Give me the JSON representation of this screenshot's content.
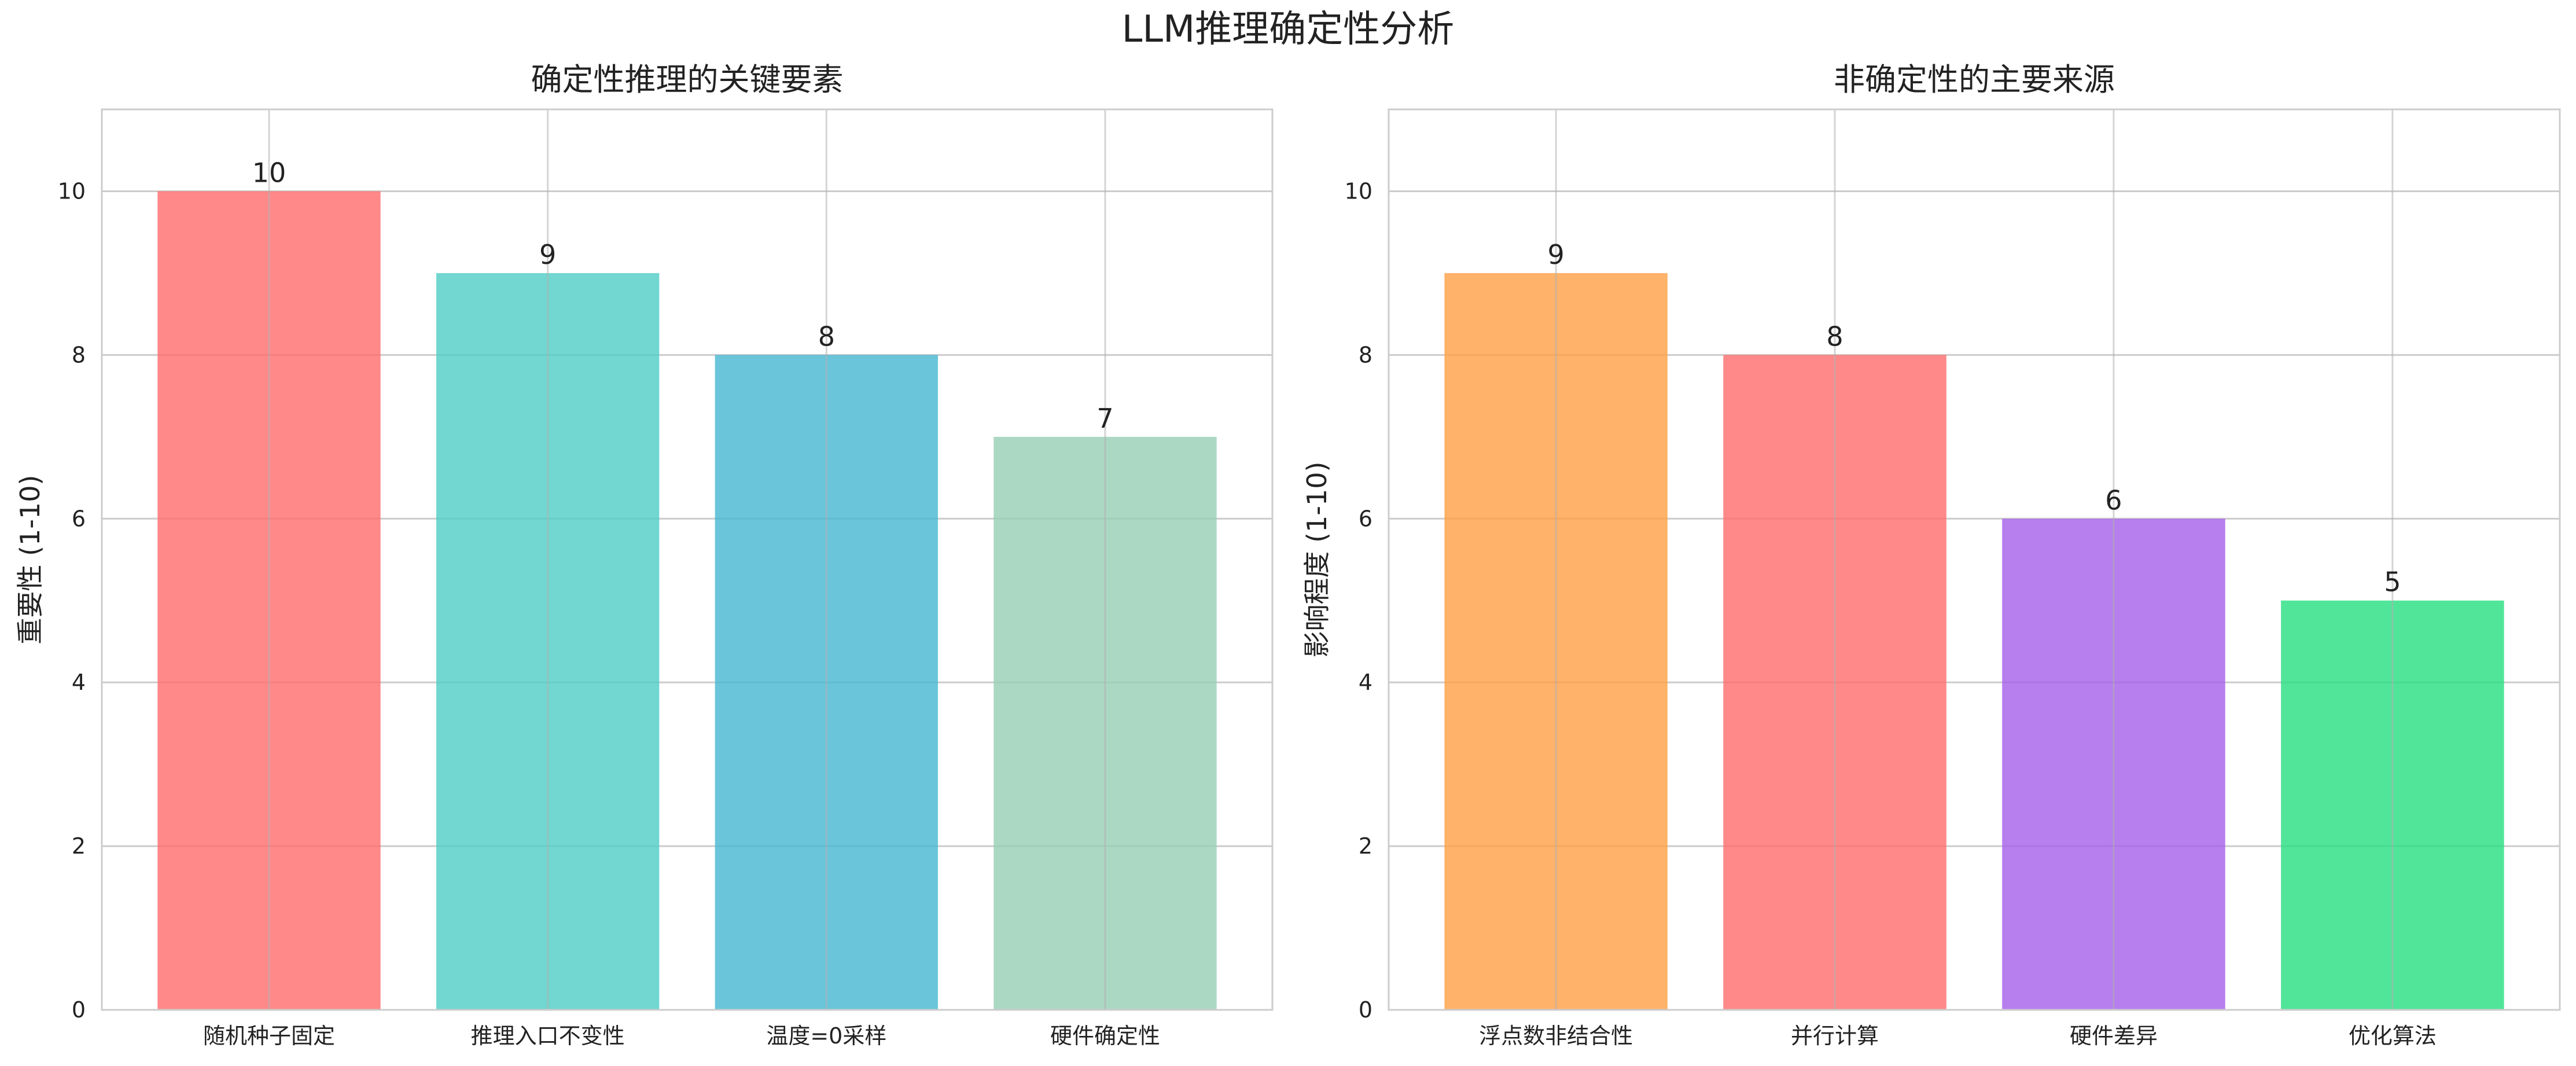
{
  "figure": {
    "suptitle": "LLM推理确定性分析"
  },
  "chart_data": [
    {
      "type": "bar",
      "title": "确定性推理的关键要素",
      "xlabel": "",
      "ylabel": "重要性 (1-10)",
      "categories": [
        "随机种子固定",
        "推理入口不变性",
        "温度=0采样",
        "硬件确定性"
      ],
      "values": [
        10,
        9,
        8,
        7
      ],
      "colors": [
        "#ff6b6b",
        "#4ecdc4",
        "#45b7d1",
        "#96ceb4"
      ],
      "ylim": [
        0,
        11
      ],
      "yticks": [
        0,
        2,
        4,
        6,
        8,
        10
      ],
      "grid": true
    },
    {
      "type": "bar",
      "title": "非确定性的主要来源",
      "xlabel": "",
      "ylabel": "影响程度 (1-10)",
      "categories": [
        "浮点数非结合性",
        "并行计算",
        "硬件差异",
        "优化算法"
      ],
      "values": [
        9,
        8,
        6,
        5
      ],
      "colors": [
        "#ff9f43",
        "#ff6b6b",
        "#a55eea",
        "#26de81"
      ],
      "ylim": [
        0,
        11
      ],
      "yticks": [
        0,
        2,
        4,
        6,
        8,
        10
      ],
      "grid": true
    }
  ]
}
